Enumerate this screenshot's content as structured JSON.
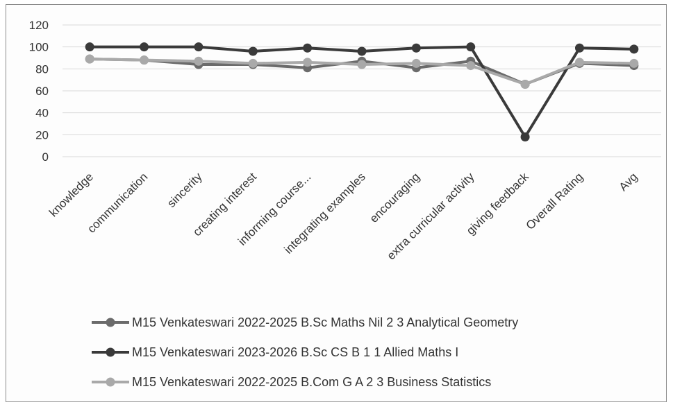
{
  "chart_data": {
    "type": "line",
    "title": "",
    "xlabel": "",
    "ylabel": "",
    "ylim": [
      0,
      120
    ],
    "yticks": [
      "0",
      "20",
      "40",
      "60",
      "80",
      "100",
      "120"
    ],
    "grid": true,
    "legend_position": "bottom",
    "categories": [
      "knowledge",
      "communication",
      "sincerity",
      "creating interest",
      "informing course...",
      "integrating examples",
      "encouraging",
      "extra curricular activity",
      "giving feedback",
      "Overall Rating",
      "Avg"
    ],
    "series": [
      {
        "name": "M15 Venkateswari 2022-2025 B.Sc Maths Nil 2 3 Analytical Geometry",
        "color": "#6b6b6b",
        "values": [
          89,
          88,
          84,
          84,
          81,
          87,
          81,
          87,
          66,
          85,
          83
        ]
      },
      {
        "name": "M15 Venkateswari 2023-2026 B.Sc CS B 1 1 Allied Maths I",
        "color": "#3a3a3a",
        "values": [
          100,
          100,
          100,
          96,
          99,
          96,
          99,
          100,
          18,
          99,
          98
        ]
      },
      {
        "name": "M15 Venkateswari 2022-2025 B.Com G A 2 3 Business Statistics",
        "color": "#a9a9a9",
        "values": [
          89,
          88,
          87,
          85,
          86,
          84,
          85,
          83,
          66,
          86,
          85
        ]
      }
    ]
  }
}
